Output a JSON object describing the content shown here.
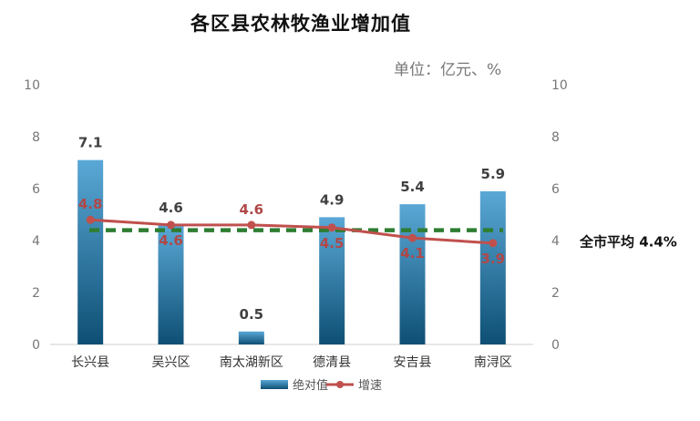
{
  "title": "各区县农林牧渔业增加值",
  "unit_label": "单位：亿元、%",
  "avg_label": "全市平均 4.4%",
  "colors": {
    "bar": "#3d8fc0",
    "bar_dark": "#0e4f74",
    "line": "#c0504d",
    "avg": "#2e7d32"
  },
  "chart_data": {
    "type": "bar",
    "title": "各区县农林牧渔业增加值",
    "categories": [
      "长兴县",
      "吴兴区",
      "南太湖新区",
      "德清县",
      "安吉县",
      "南浔区"
    ],
    "series": [
      {
        "name": "绝对值",
        "type": "bar",
        "axis": "left",
        "values": [
          7.1,
          4.6,
          0.5,
          4.9,
          5.4,
          5.9
        ]
      },
      {
        "name": "增速",
        "type": "line",
        "axis": "right",
        "values": [
          4.8,
          4.6,
          4.6,
          4.5,
          4.1,
          3.9
        ]
      }
    ],
    "reference_line": {
      "label": "全市平均 4.4%",
      "value": 4.4,
      "axis": "right"
    },
    "ylim": [
      0,
      10
    ],
    "y2lim": [
      0,
      10
    ],
    "yticks": [
      0,
      2,
      4,
      6,
      8,
      10
    ],
    "y2ticks": [
      0,
      2,
      4,
      6,
      8,
      10
    ],
    "legend_position": "bottom",
    "grid": false
  }
}
